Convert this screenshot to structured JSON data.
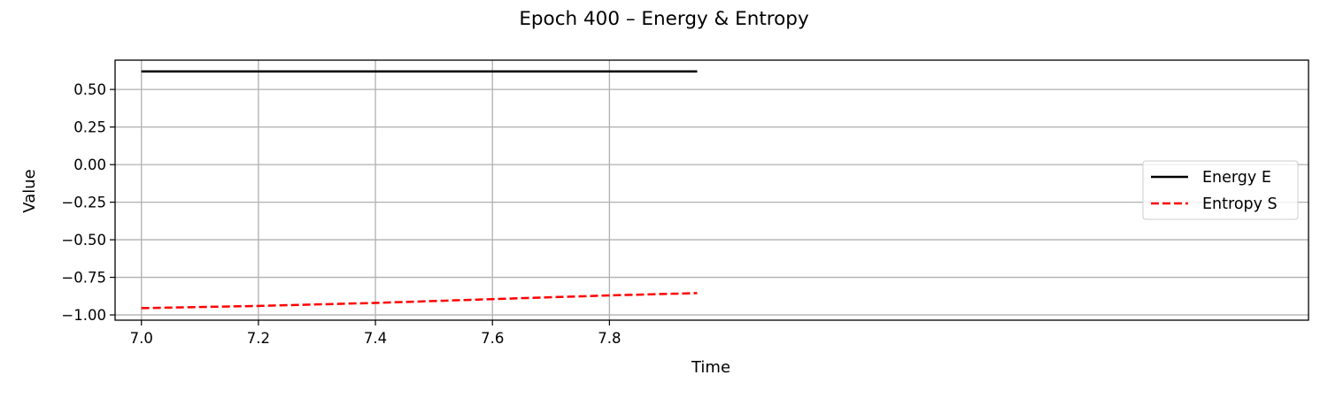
{
  "chart_data": {
    "type": "line",
    "title": "Epoch 400 – Energy & Entropy",
    "xlabel": "Time",
    "ylabel": "Value",
    "xlim": [
      6.955,
      8.995
    ],
    "ylim": [
      -1.035,
      0.695
    ],
    "xticks": [
      7.0,
      7.2,
      7.4,
      7.6,
      7.8
    ],
    "xtick_labels": [
      "7.0",
      "7.2",
      "7.4",
      "7.6",
      "7.8"
    ],
    "yticks": [
      0.5,
      0.25,
      0.0,
      -0.25,
      -0.5,
      -0.75,
      -1.0
    ],
    "ytick_labels": [
      "0.50",
      "0.25",
      "0.00",
      "−0.25",
      "−0.50",
      "−0.75",
      "−1.00"
    ],
    "grid": true,
    "legend_position": "center-right",
    "series": [
      {
        "name": "Energy E",
        "color": "#000000",
        "style": "solid",
        "x": [
          7.0,
          7.95
        ],
        "y": [
          0.62,
          0.62
        ]
      },
      {
        "name": "Entropy S",
        "color": "#ff0000",
        "style": "dashed",
        "x": [
          7.0,
          7.2,
          7.4,
          7.6,
          7.8,
          7.95
        ],
        "y": [
          -0.955,
          -0.94,
          -0.92,
          -0.895,
          -0.87,
          -0.855
        ]
      }
    ]
  }
}
